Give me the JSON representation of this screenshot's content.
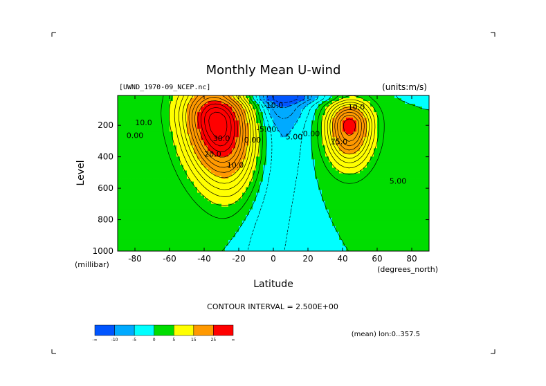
{
  "chart_data": {
    "type": "heatmap",
    "title": "Monthly Mean U-wind",
    "subtitle_left": "[UWND_1970-09_NCEP.nc]",
    "subtitle_right": "(units:m/s)",
    "xlabel": "Latitude",
    "xunits": "(degrees_north)",
    "ylabel": "Level",
    "yunits": "(millibar)",
    "x_ticks": [
      "-80",
      "-60",
      "-40",
      "-20",
      "0",
      "20",
      "40",
      "60",
      "80"
    ],
    "x_tick_values": [
      -80,
      -60,
      -40,
      -20,
      0,
      20,
      40,
      60,
      80
    ],
    "y_ticks": [
      "200",
      "400",
      "600",
      "800",
      "1000"
    ],
    "y_tick_values": [
      200,
      400,
      600,
      800,
      1000
    ],
    "xlim": [
      -90,
      90
    ],
    "ylim": [
      1000,
      10
    ],
    "contour_interval_text": "CONTOUR INTERVAL = 2.500E+00",
    "footer_text": "(mean) lon:0..357.5",
    "contour_labels": [
      {
        "text": "10.0",
        "lat": -75,
        "lev": 200
      },
      {
        "text": "0.00",
        "lat": -80,
        "lev": 280
      },
      {
        "text": "30.0",
        "lat": -30,
        "lev": 300
      },
      {
        "text": "20.0",
        "lat": -35,
        "lev": 400
      },
      {
        "text": "10.0",
        "lat": -22,
        "lev": 470
      },
      {
        "text": "0.00",
        "lat": -12,
        "lev": 310
      },
      {
        "text": "-5.00",
        "lat": -4,
        "lev": 240
      },
      {
        "text": "-10.0",
        "lat": 0,
        "lev": 90
      },
      {
        "text": "5.00",
        "lat": 12,
        "lev": 290
      },
      {
        "text": "0.00",
        "lat": 22,
        "lev": 270
      },
      {
        "text": "10.0",
        "lat": 48,
        "lev": 100
      },
      {
        "text": "15.0",
        "lat": 38,
        "lev": 320
      },
      {
        "text": "5.00",
        "lat": 72,
        "lev": 570
      }
    ],
    "jets": [
      {
        "lat": -32,
        "lev": 180,
        "peak": 35
      },
      {
        "lat": 44,
        "lev": 200,
        "peak": 27
      }
    ],
    "colorbar": {
      "colors": [
        "#0055ff",
        "#00aaff",
        "#00ffff",
        "#00dd00",
        "#ffff00",
        "#ff9900",
        "#ff0000"
      ],
      "labels": [
        "-∞",
        "-10",
        "-5",
        "0",
        "5",
        "15",
        "25",
        "∞"
      ]
    }
  }
}
